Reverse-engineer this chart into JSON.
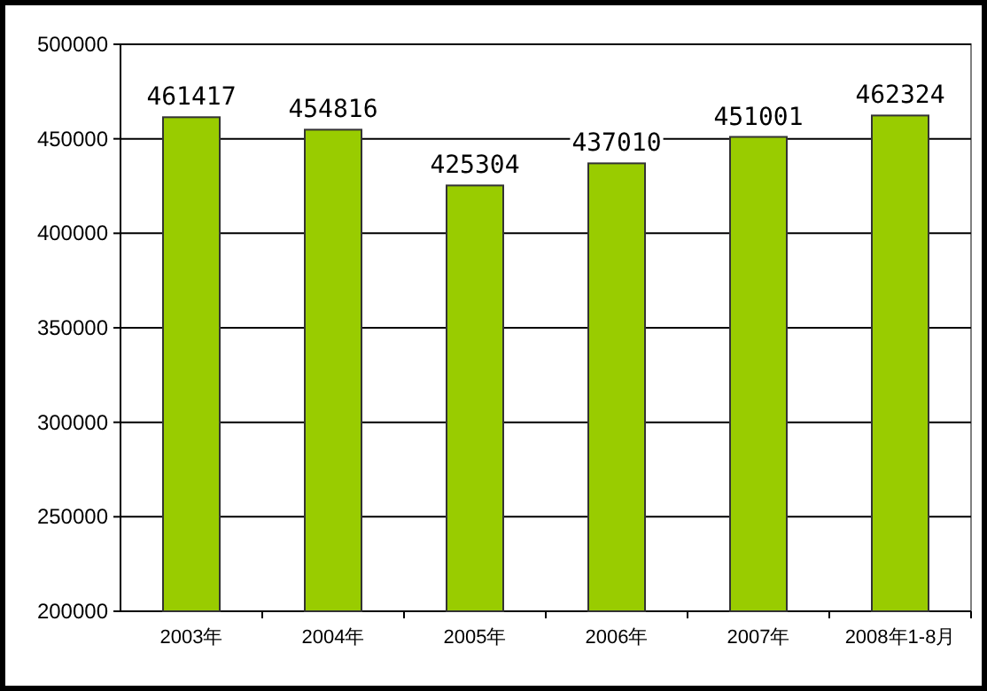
{
  "chart_data": {
    "type": "bar",
    "categories": [
      "2003年",
      "2004年",
      "2005年",
      "2006年",
      "2007年",
      "2008年1-8月"
    ],
    "values": [
      461417,
      454816,
      425304,
      437010,
      451001,
      462324
    ],
    "color": "#99cc00",
    "ylim": [
      200000,
      500000
    ],
    "yticks": [
      200000,
      250000,
      300000,
      350000,
      400000,
      450000,
      500000
    ],
    "grid": "y",
    "data_labels": true
  }
}
